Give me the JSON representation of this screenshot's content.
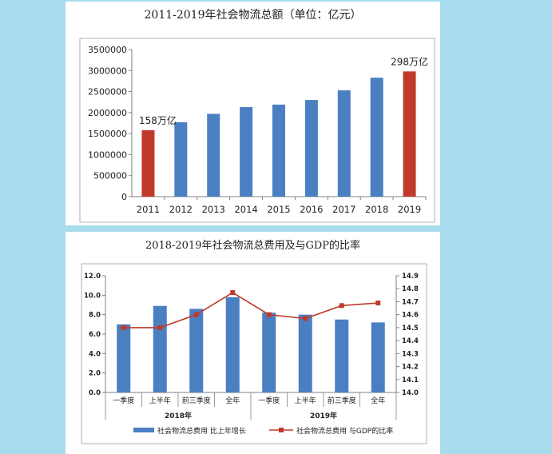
{
  "page": {
    "background": "#a7dced"
  },
  "chart_data": [
    {
      "type": "bar",
      "title": "2011-2019年社会物流总额（单位：亿元）",
      "categories": [
        "2011",
        "2012",
        "2013",
        "2014",
        "2015",
        "2016",
        "2017",
        "2018",
        "2019"
      ],
      "values": [
        1580000,
        1770000,
        1970000,
        2130000,
        2190000,
        2300000,
        2530000,
        2830000,
        2980000
      ],
      "highlight": [
        true,
        false,
        false,
        false,
        false,
        false,
        false,
        false,
        true
      ],
      "colors": {
        "normal": "#4a7fc1",
        "highlight": "#c0392b"
      },
      "ylim": [
        0,
        3500000
      ],
      "yticks": [
        0,
        500000,
        1000000,
        1500000,
        2000000,
        2500000,
        3000000,
        3500000
      ],
      "annotations": [
        {
          "category": "2011",
          "text": "158万亿"
        },
        {
          "category": "2019",
          "text": "298万亿"
        }
      ],
      "grid": false
    },
    {
      "type": "bar+line",
      "title": "2018-2019年社会物流总费用及与GDP的比率",
      "categories": [
        "一季度",
        "上半年",
        "前三季度",
        "全年",
        "一季度",
        "上半年",
        "前三季度",
        "全年"
      ],
      "groups": [
        {
          "label": "2018年",
          "span": 4
        },
        {
          "label": "2019年",
          "span": 4
        }
      ],
      "series": [
        {
          "name": "社会物流总费用 比上年增长",
          "type": "bar",
          "axis": "left",
          "color": "#4a7fc1",
          "values": [
            7.0,
            8.9,
            8.6,
            9.8,
            8.2,
            8.0,
            7.5,
            7.2
          ]
        },
        {
          "name": "社会物流总费用 与GDP的比率",
          "type": "line",
          "axis": "right",
          "color": "#c0392b",
          "values": [
            14.5,
            14.5,
            14.6,
            14.77,
            14.6,
            14.57,
            14.67,
            14.69
          ]
        }
      ],
      "ylim_left": [
        0,
        12
      ],
      "yticks_left": [
        "0.0",
        "2.0",
        "4.0",
        "6.0",
        "8.0",
        "10.0",
        "12.0"
      ],
      "ylim_right": [
        14.0,
        14.9
      ],
      "yticks_right": [
        "14.0",
        "14.1",
        "14.2",
        "14.3",
        "14.4",
        "14.5",
        "14.6",
        "14.7",
        "14.8",
        "14.9"
      ],
      "legend_position": "bottom",
      "grid": false
    }
  ]
}
